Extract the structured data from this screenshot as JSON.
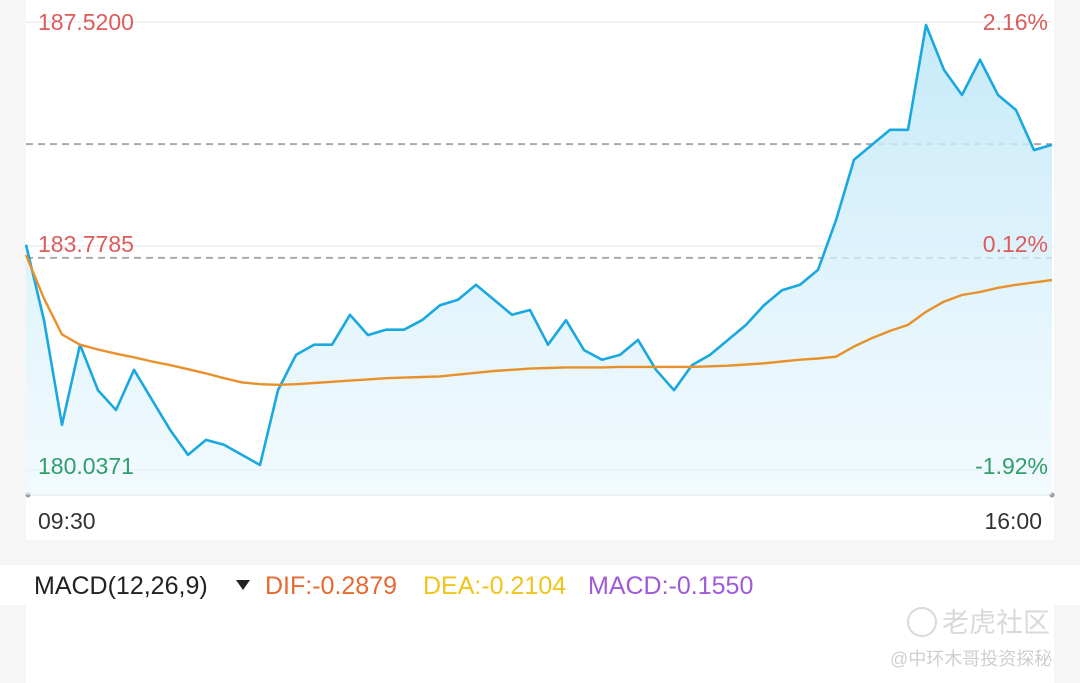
{
  "chart_data": {
    "type": "line",
    "categories": [
      "09:30",
      null,
      null,
      null,
      null,
      null,
      null,
      null,
      null,
      null,
      null,
      null,
      null,
      null,
      null,
      null,
      null,
      null,
      null,
      null,
      null,
      null,
      null,
      null,
      null,
      null,
      null,
      null,
      null,
      null,
      null,
      null,
      null,
      null,
      null,
      null,
      null,
      null,
      null,
      null,
      null,
      null,
      null,
      null,
      null,
      null,
      null,
      null,
      null,
      null,
      null,
      null,
      null,
      null,
      null,
      null,
      null,
      "16:00"
    ],
    "series": [
      {
        "color": "#1aa8e0",
        "values": [
          183.8,
          182.54,
          180.79,
          182.13,
          181.37,
          181.04,
          181.71,
          181.21,
          180.71,
          180.29,
          180.54,
          180.46,
          180.29,
          180.12,
          181.37,
          181.96,
          182.13,
          182.13,
          182.63,
          182.29,
          182.38,
          182.38,
          182.54,
          182.79,
          182.88,
          183.13,
          182.88,
          182.63,
          182.71,
          182.13,
          182.54,
          182.04,
          181.88,
          181.96,
          182.21,
          181.71,
          181.37,
          181.79,
          181.96,
          182.21,
          182.46,
          182.79,
          183.04,
          183.13,
          183.38,
          184.21,
          185.22,
          185.47,
          185.72,
          185.72,
          187.47,
          186.72,
          186.3,
          186.89,
          186.3,
          186.05,
          185.38,
          185.47
        ]
      },
      {
        "color": "#e8902a",
        "values": [
          183.63,
          182.9,
          182.3,
          182.13,
          182.05,
          181.98,
          181.92,
          181.85,
          181.79,
          181.72,
          181.65,
          181.57,
          181.5,
          181.47,
          181.46,
          181.47,
          181.49,
          181.51,
          181.53,
          181.55,
          181.57,
          181.58,
          181.59,
          181.6,
          181.63,
          181.66,
          181.69,
          181.71,
          181.73,
          181.74,
          181.75,
          181.75,
          181.75,
          181.76,
          181.76,
          181.76,
          181.76,
          181.76,
          181.77,
          181.78,
          181.8,
          181.82,
          181.85,
          181.88,
          181.9,
          181.93,
          182.1,
          182.24,
          182.36,
          182.46,
          182.68,
          182.85,
          182.96,
          183.01,
          183.08,
          183.13,
          183.17,
          183.21
        ]
      }
    ],
    "ylim": [
      180.0371,
      187.52
    ],
    "yticks": [
      {
        "value": 187.52,
        "label": "187.5200"
      },
      {
        "value": 183.7785,
        "label": "183.7785"
      },
      {
        "value": 180.0371,
        "label": "180.0371"
      }
    ],
    "y2lim": [
      -1.92,
      2.16
    ],
    "y2ticks": [
      {
        "value": 2.16,
        "label": "2.16%"
      },
      {
        "value": 0.12,
        "label": "0.12%"
      },
      {
        "value": -1.92,
        "label": "-1.92%"
      }
    ],
    "reference_lines": [
      185.48,
      183.58
    ],
    "macd": {
      "title": "MACD(12,26,9)",
      "dif": "DIF:-0.2879",
      "dea": "DEA:-0.2104",
      "macd": "MACD:-0.1550"
    },
    "watermark": {
      "brand": "老虎社区",
      "author": "@中环木哥投资探秘"
    }
  }
}
